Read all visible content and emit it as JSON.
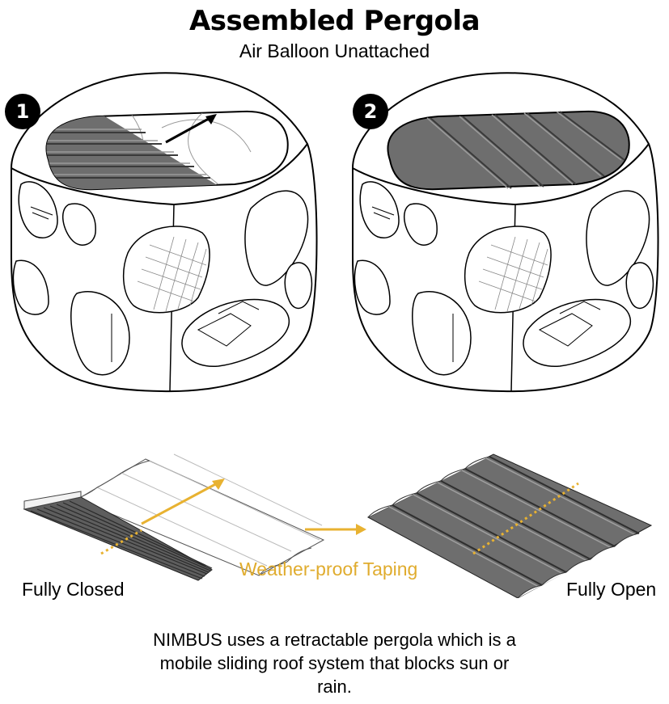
{
  "header": {
    "title": "Assembled Pergola",
    "subtitle": "Air Balloon Unattached"
  },
  "steps": [
    {
      "number": "1",
      "roof_state": "partially covered"
    },
    {
      "number": "2",
      "roof_state": "fully covered"
    }
  ],
  "pergola_diagram": {
    "left_label": "Fully Closed",
    "right_label": "Fully Open",
    "tape_label": "Weather-proof Taping",
    "accent_color": "#e8b231",
    "panel_color": "#6e6e6e"
  },
  "description": {
    "lines": [
      "NIMBUS uses a retractable pergola which is a",
      "mobile sliding roof system that blocks sun or",
      "rain."
    ]
  }
}
